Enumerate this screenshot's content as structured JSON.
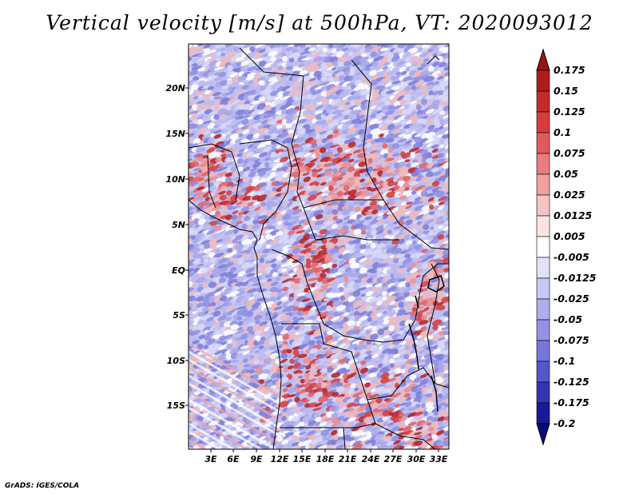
{
  "title": "Vertical velocity [m/s] at 500hPa, VT: 2020093012",
  "credit": "GrADS: IGES/COLA",
  "map": {
    "lat_labels": [
      "20N",
      "15N",
      "10N",
      "5N",
      "EQ",
      "5S",
      "10S",
      "15S"
    ],
    "lon_labels": [
      "3E",
      "6E",
      "9E",
      "12E",
      "15E",
      "18E",
      "21E",
      "24E",
      "27E",
      "30E",
      "33E"
    ]
  },
  "colorbar": {
    "labels": [
      "0.175",
      "0.15",
      "0.125",
      "0.1",
      "0.075",
      "0.05",
      "0.025",
      "0.0125",
      "0.005",
      "-0.005",
      "-0.0125",
      "-0.025",
      "-0.05",
      "-0.075",
      "-0.1",
      "-0.125",
      "-0.175",
      "-0.2"
    ],
    "colors": [
      "#9b1414",
      "#b01c1c",
      "#c42a2a",
      "#d63c3c",
      "#e05a5a",
      "#e87e7e",
      "#f0a0a0",
      "#f6c4c4",
      "#fbe4e4",
      "#ffffff",
      "#e2e2fa",
      "#c8c8f4",
      "#aeaeee",
      "#9393e6",
      "#7676dc",
      "#5555cc",
      "#3434b4",
      "#1a1a96",
      "#0a0a7a"
    ]
  }
}
